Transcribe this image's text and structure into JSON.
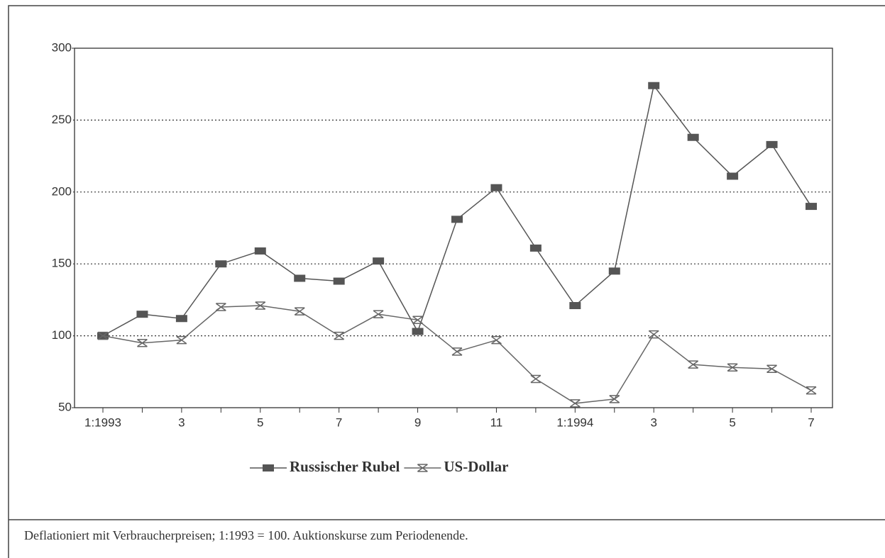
{
  "chart_data": {
    "type": "line",
    "categories": [
      "1:1993",
      null,
      "3",
      null,
      "5",
      null,
      "7",
      null,
      "9",
      null,
      "11",
      null,
      "1:1994",
      null,
      "3",
      null,
      "5",
      null,
      "7"
    ],
    "series": [
      {
        "name": "Russischer Rubel",
        "color": "#555555",
        "marker": "square",
        "values": [
          100,
          115,
          112,
          150,
          159,
          140,
          138,
          152,
          103,
          181,
          203,
          161,
          121,
          145,
          274,
          238,
          211,
          233,
          190
        ]
      },
      {
        "name": "US-Dollar",
        "color": "#666666",
        "marker": "x",
        "values": [
          100,
          95,
          97,
          120,
          121,
          117,
          100,
          115,
          111,
          89,
          97,
          70,
          53,
          56,
          101,
          80,
          78,
          77,
          62
        ]
      }
    ],
    "ylim": [
      50,
      300
    ],
    "yticks": [
      50,
      100,
      150,
      200,
      250,
      300
    ],
    "grid": true,
    "legend": "bottom",
    "note": "Deflationiert mit Verbraucherpreisen; 1:1993 = 100. Auktionskurse zum Periodenende."
  }
}
